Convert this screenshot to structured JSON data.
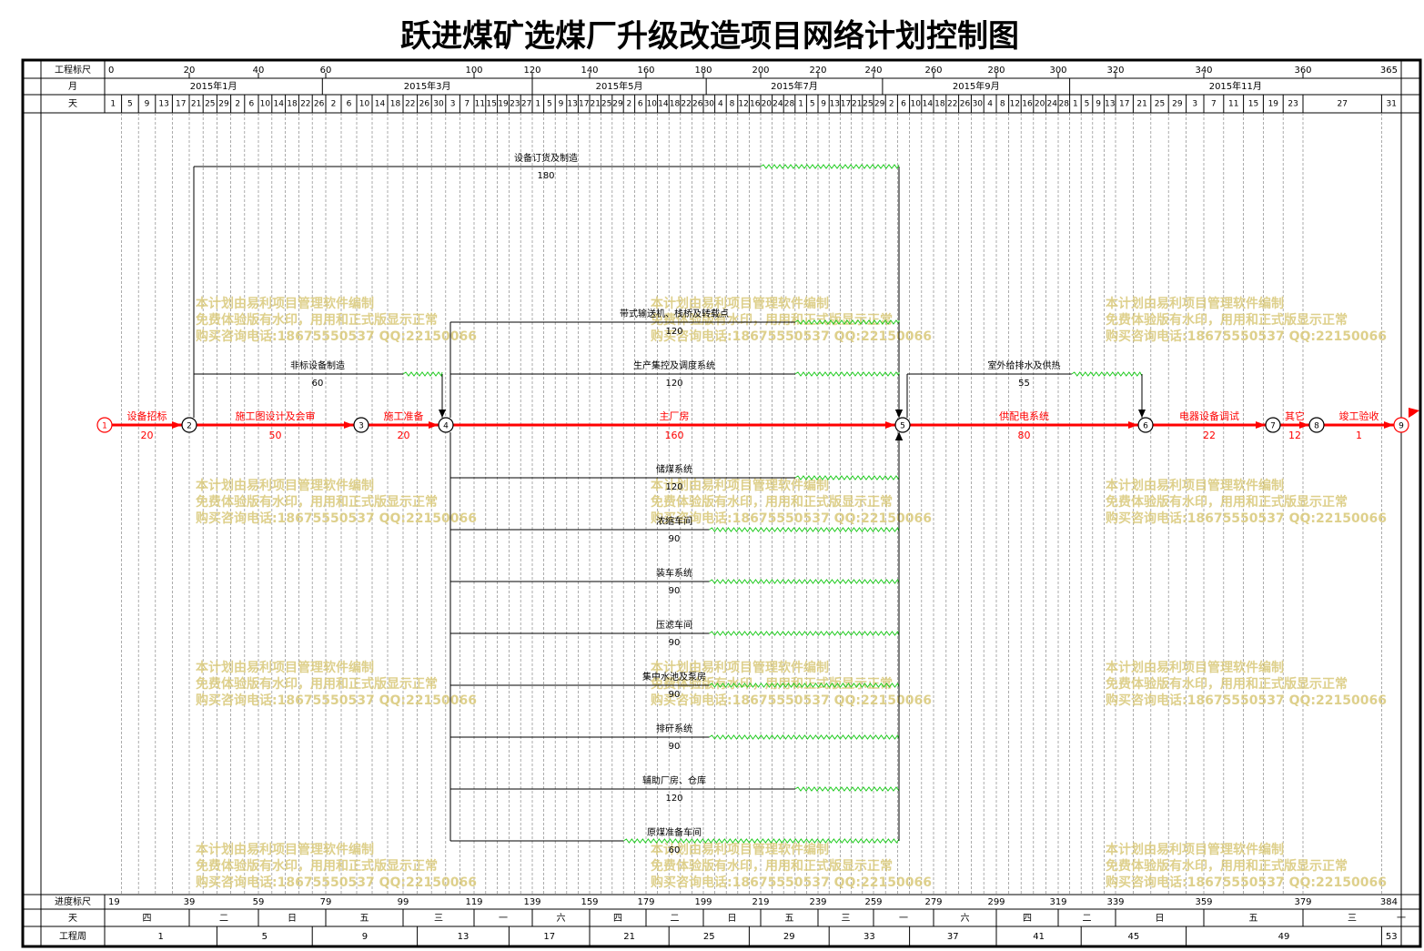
{
  "title": "跃进煤矿选煤厂升级改造项目网络计划控制图",
  "header": {
    "scale_label": "工程标尺",
    "month_label": "月",
    "day_label": "天",
    "scale_ticks": [
      0,
      20,
      40,
      60,
      100,
      120,
      140,
      160,
      180,
      200,
      220,
      240,
      260,
      280,
      300,
      320,
      340,
      360,
      365
    ],
    "months": [
      "2015年1月",
      "2015年3月",
      "2015年5月",
      "2015年7月",
      "2015年9月",
      "2015年11月"
    ],
    "days": [
      1,
      5,
      9,
      13,
      17,
      21,
      25,
      29,
      2,
      6,
      10,
      14,
      18,
      22,
      26,
      2,
      6,
      10,
      14,
      18,
      22,
      26,
      30,
      3,
      7,
      11,
      15,
      19,
      23,
      27,
      1,
      5,
      9,
      13,
      17,
      21,
      25,
      29,
      2,
      6,
      10,
      14,
      18,
      22,
      26,
      30,
      4,
      8,
      12,
      16,
      20,
      24,
      28,
      1,
      5,
      9,
      13,
      17,
      21,
      25,
      29,
      2,
      6,
      10,
      14,
      18,
      22,
      26,
      30,
      4,
      8,
      12,
      16,
      20,
      24,
      28,
      1,
      5,
      9,
      13,
      17,
      21,
      25,
      29,
      3,
      7,
      11,
      15,
      19,
      23,
      27,
      31
    ]
  },
  "footer": {
    "progress_label": "进度标尺",
    "progress_ticks": [
      19,
      39,
      59,
      79,
      99,
      119,
      139,
      159,
      179,
      199,
      219,
      239,
      259,
      279,
      299,
      319,
      339,
      359,
      379,
      384
    ],
    "weekday_label": "天",
    "weekdays": [
      "四",
      "二",
      "日",
      "五",
      "三",
      "一",
      "六",
      "四",
      "二",
      "日",
      "五",
      "三",
      "一",
      "六",
      "四",
      "二",
      "日",
      "五",
      "三",
      "一"
    ],
    "week_label": "工程周",
    "weeks": [
      1,
      5,
      9,
      13,
      17,
      21,
      25,
      29,
      33,
      37,
      41,
      45,
      49,
      53
    ]
  },
  "nodes": [
    {
      "label": "1"
    },
    {
      "label": "2"
    },
    {
      "label": "3"
    },
    {
      "label": "4"
    },
    {
      "label": "5"
    },
    {
      "label": "6"
    },
    {
      "label": "7"
    },
    {
      "label": "8"
    },
    {
      "label": "9"
    }
  ],
  "activities": [
    {
      "name": "设备招标",
      "duration": 20,
      "from": "1",
      "to": "2"
    },
    {
      "name": "施工图设计及会审",
      "duration": 50,
      "from": "2",
      "to": "3"
    },
    {
      "name": "施工准备",
      "duration": 20,
      "from": "3",
      "to": "4"
    },
    {
      "name": "主厂房",
      "duration": 160,
      "from": "4",
      "to": "5"
    },
    {
      "name": "供配电系统",
      "duration": 80,
      "from": "5",
      "to": "6"
    },
    {
      "name": "电器设备调试",
      "duration": 22,
      "from": "6",
      "to": "7"
    },
    {
      "name": "其它",
      "duration": 12,
      "from": "7",
      "to": "8"
    },
    {
      "name": "竣工验收",
      "duration": 1,
      "from": "8",
      "to": "9"
    },
    {
      "name": "设备订货及制造",
      "duration": 180,
      "from": "2",
      "to": "5"
    },
    {
      "name": "带式输送机、栈桥及转载点",
      "duration": 120,
      "from": "4",
      "to": "5"
    },
    {
      "name": "非标设备制造",
      "duration": 60,
      "from": "2",
      "to": "4"
    },
    {
      "name": "生产集控及调度系统",
      "duration": 120,
      "from": "4",
      "to": "5"
    },
    {
      "name": "室外给排水及供热",
      "duration": 55,
      "from": "5",
      "to": "6"
    },
    {
      "name": "储煤系统",
      "duration": 120,
      "from": "4",
      "to": "5"
    },
    {
      "name": "浓缩车间",
      "duration": 90,
      "from": "4",
      "to": "5"
    },
    {
      "name": "装车系统",
      "duration": 90,
      "from": "4",
      "to": "5"
    },
    {
      "name": "压滤车间",
      "duration": 90,
      "from": "4",
      "to": "5"
    },
    {
      "name": "集中水池及泵房",
      "duration": 90,
      "from": "4",
      "to": "5"
    },
    {
      "name": "排矸系统",
      "duration": 90,
      "from": "4",
      "to": "5"
    },
    {
      "name": "辅助厂房、仓库",
      "duration": 120,
      "from": "4",
      "to": "5"
    },
    {
      "name": "原煤准备车间",
      "duration": 60,
      "from": "4",
      "to": "5"
    }
  ],
  "watermark": [
    "本计划由易利项目管理软件编制",
    "免费体验版有水印，用用和正式版显示正常",
    "购买咨询电话:18675550537 QQ:22150066"
  ]
}
